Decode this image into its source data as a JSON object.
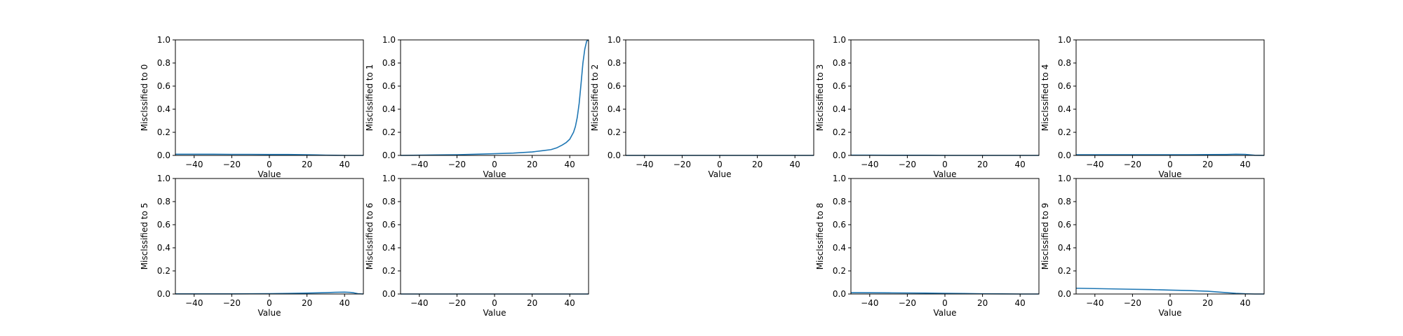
{
  "chart_data": [
    {
      "type": "line",
      "ylabel": "Misclssified to 0",
      "xlabel": "Value",
      "xlim": [
        -50,
        50
      ],
      "ylim": [
        0,
        1
      ],
      "xticks": [
        -40,
        -20,
        0,
        20,
        40
      ],
      "yticks": [
        0.0,
        0.2,
        0.4,
        0.6,
        0.8,
        1.0
      ],
      "color": "#1f77b4",
      "series": [
        {
          "x": [
            -50,
            -40,
            -30,
            -20,
            -10,
            0,
            10,
            20,
            25,
            30,
            35,
            40,
            45,
            50
          ],
          "y": [
            0.01,
            0.01,
            0.01,
            0.009,
            0.009,
            0.008,
            0.008,
            0.006,
            0.004,
            0.002,
            0.001,
            0.0,
            0.0,
            0.0
          ]
        }
      ]
    },
    {
      "type": "line",
      "ylabel": "Misclssified to 1",
      "xlabel": "Value",
      "xlim": [
        -50,
        50
      ],
      "ylim": [
        0,
        1
      ],
      "xticks": [
        -40,
        -20,
        0,
        20,
        40
      ],
      "yticks": [
        0.0,
        0.2,
        0.4,
        0.6,
        0.8,
        1.0
      ],
      "color": "#1f77b4",
      "series": [
        {
          "x": [
            -50,
            -40,
            -30,
            -20,
            -10,
            0,
            10,
            20,
            25,
            30,
            33,
            36,
            38,
            40,
            42,
            43,
            44,
            45,
            46,
            47,
            48,
            49,
            50
          ],
          "y": [
            0.0,
            0.002,
            0.004,
            0.006,
            0.01,
            0.015,
            0.02,
            0.03,
            0.04,
            0.05,
            0.065,
            0.09,
            0.11,
            0.14,
            0.2,
            0.25,
            0.33,
            0.45,
            0.62,
            0.8,
            0.92,
            0.99,
            1.0
          ]
        }
      ]
    },
    {
      "type": "line",
      "ylabel": "Misclssified to 2",
      "xlabel": "Value",
      "xlim": [
        -50,
        50
      ],
      "ylim": [
        0,
        1
      ],
      "xticks": [
        -40,
        -20,
        0,
        20,
        40
      ],
      "yticks": [
        0.0,
        0.2,
        0.4,
        0.6,
        0.8,
        1.0
      ],
      "color": "#1f77b4",
      "series": [
        {
          "x": [
            -50,
            -40,
            -30,
            -20,
            -10,
            0,
            10,
            20,
            30,
            40,
            50
          ],
          "y": [
            0.0,
            0.0,
            0.0,
            0.0,
            0.0,
            0.0,
            0.0,
            0.0,
            0.0,
            0.0,
            0.0
          ]
        }
      ]
    },
    {
      "type": "line",
      "ylabel": "Misclssified to 3",
      "xlabel": "Value",
      "xlim": [
        -50,
        50
      ],
      "ylim": [
        0,
        1
      ],
      "xticks": [
        -40,
        -20,
        0,
        20,
        40
      ],
      "yticks": [
        0.0,
        0.2,
        0.4,
        0.6,
        0.8,
        1.0
      ],
      "color": "#1f77b4",
      "series": [
        {
          "x": [
            -50,
            -40,
            -30,
            -20,
            -10,
            0,
            10,
            20,
            30,
            40,
            50
          ],
          "y": [
            0.002,
            0.002,
            0.001,
            0.001,
            0.001,
            0.0,
            0.0,
            0.0,
            0.0,
            0.0,
            0.0
          ]
        }
      ]
    },
    {
      "type": "line",
      "ylabel": "Misclssified to 4",
      "xlabel": "Value",
      "xlim": [
        -50,
        50
      ],
      "ylim": [
        0,
        1
      ],
      "xticks": [
        -40,
        -20,
        0,
        20,
        40
      ],
      "yticks": [
        0.0,
        0.2,
        0.4,
        0.6,
        0.8,
        1.0
      ],
      "color": "#1f77b4",
      "series": [
        {
          "x": [
            -50,
            -40,
            -30,
            -20,
            -10,
            0,
            10,
            20,
            30,
            35,
            40,
            43,
            45,
            50
          ],
          "y": [
            0.006,
            0.006,
            0.006,
            0.006,
            0.006,
            0.006,
            0.006,
            0.007,
            0.008,
            0.01,
            0.009,
            0.004,
            0.001,
            0.0
          ]
        }
      ]
    },
    {
      "type": "line",
      "ylabel": "Misclssified to 5",
      "xlabel": "Value",
      "xlim": [
        -50,
        50
      ],
      "ylim": [
        0,
        1
      ],
      "xticks": [
        -40,
        -20,
        0,
        20,
        40
      ],
      "yticks": [
        0.0,
        0.2,
        0.4,
        0.6,
        0.8,
        1.0
      ],
      "color": "#1f77b4",
      "series": [
        {
          "x": [
            -50,
            -40,
            -30,
            -20,
            -10,
            0,
            10,
            20,
            30,
            35,
            40,
            43,
            45,
            47,
            50
          ],
          "y": [
            0.001,
            0.001,
            0.001,
            0.001,
            0.002,
            0.003,
            0.005,
            0.008,
            0.012,
            0.015,
            0.016,
            0.014,
            0.01,
            0.003,
            0.0
          ]
        }
      ]
    },
    {
      "type": "line",
      "ylabel": "Misclssified to 6",
      "xlabel": "Value",
      "xlim": [
        -50,
        50
      ],
      "ylim": [
        0,
        1
      ],
      "xticks": [
        -40,
        -20,
        0,
        20,
        40
      ],
      "yticks": [
        0.0,
        0.2,
        0.4,
        0.6,
        0.8,
        1.0
      ],
      "color": "#1f77b4",
      "series": [
        {
          "x": [
            -50,
            -40,
            -30,
            -20,
            -10,
            0,
            10,
            20,
            30,
            40,
            50
          ],
          "y": [
            0.0,
            0.0,
            0.0,
            0.0,
            0.0,
            0.0,
            0.0,
            0.0,
            0.0,
            0.0,
            0.0
          ]
        }
      ]
    },
    {
      "type": "line",
      "ylabel": "Misclssified to 8",
      "xlabel": "Value",
      "xlim": [
        -50,
        50
      ],
      "ylim": [
        0,
        1
      ],
      "xticks": [
        -40,
        -20,
        0,
        20,
        40
      ],
      "yticks": [
        0.0,
        0.2,
        0.4,
        0.6,
        0.8,
        1.0
      ],
      "color": "#1f77b4",
      "series": [
        {
          "x": [
            -50,
            -40,
            -30,
            -20,
            -10,
            0,
            10,
            20,
            30,
            40,
            50
          ],
          "y": [
            0.012,
            0.011,
            0.01,
            0.009,
            0.008,
            0.006,
            0.004,
            0.002,
            0.001,
            0.0,
            0.0
          ]
        }
      ]
    },
    {
      "type": "line",
      "ylabel": "Misclssified to 9",
      "xlabel": "Value",
      "xlim": [
        -50,
        50
      ],
      "ylim": [
        0,
        1
      ],
      "xticks": [
        -40,
        -20,
        0,
        20,
        40
      ],
      "yticks": [
        0.0,
        0.2,
        0.4,
        0.6,
        0.8,
        1.0
      ],
      "color": "#1f77b4",
      "series": [
        {
          "x": [
            -50,
            -40,
            -30,
            -20,
            -10,
            0,
            10,
            20,
            25,
            30,
            35,
            40,
            45,
            50
          ],
          "y": [
            0.05,
            0.047,
            0.044,
            0.041,
            0.038,
            0.034,
            0.03,
            0.024,
            0.018,
            0.012,
            0.006,
            0.002,
            0.0,
            0.0
          ]
        }
      ]
    }
  ]
}
